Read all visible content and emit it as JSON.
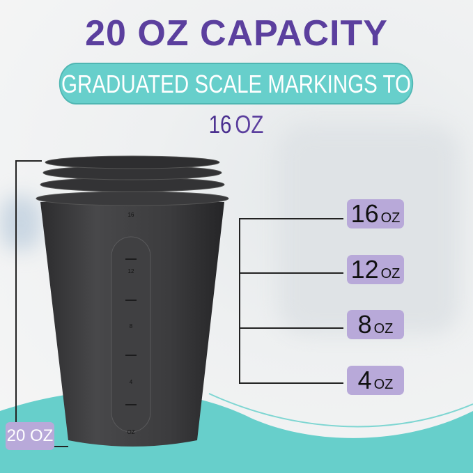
{
  "headline": "20 OZ CAPACITY",
  "banner": {
    "text": "GRADUATED SCALE MARKINGS TO",
    "highlight_number": "16",
    "highlight_unit": "OZ"
  },
  "capacity_label": "20 OZ",
  "markers": [
    {
      "value": "16",
      "unit": "OZ"
    },
    {
      "value": "12",
      "unit": "OZ"
    },
    {
      "value": "8",
      "unit": "OZ"
    },
    {
      "value": "4",
      "unit": "OZ"
    }
  ],
  "cup_scale": [
    "16",
    "12",
    "8",
    "4",
    "OZ"
  ],
  "colors": {
    "purple": "#5b3f9e",
    "teal": "#67cfcb",
    "lavender": "#b8a9d9",
    "cup": "#3a3a3c"
  }
}
